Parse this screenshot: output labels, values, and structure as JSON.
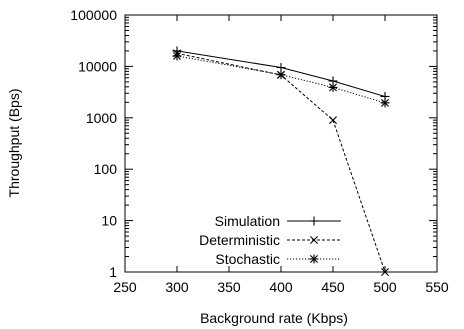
{
  "chart_data": {
    "type": "line",
    "title": "",
    "xlabel": "Background rate (Kbps)",
    "ylabel": "Throughput (Bps)",
    "xlim": [
      250,
      550
    ],
    "ylim": [
      1,
      100000
    ],
    "yscale": "log",
    "xticks": [
      "250",
      "300",
      "350",
      "400",
      "450",
      "500",
      "550"
    ],
    "yticks": [
      "1",
      "10",
      "100",
      "1000",
      "10000",
      "100000"
    ],
    "grid": false,
    "legend_position": "bottom-left",
    "series": [
      {
        "name": "Simulation",
        "x": [
          300,
          400,
          450,
          500
        ],
        "y": [
          20000,
          9500,
          5200,
          2600
        ],
        "marker": "plus",
        "dash": "solid"
      },
      {
        "name": "Deterministic",
        "x": [
          300,
          400,
          450,
          500
        ],
        "y": [
          18000,
          6800,
          900,
          1
        ],
        "marker": "x",
        "dash": "dashed"
      },
      {
        "name": "Stochastic",
        "x": [
          300,
          400,
          450,
          500
        ],
        "y": [
          16000,
          6900,
          3900,
          1950
        ],
        "marker": "star",
        "dash": "dotted"
      }
    ]
  }
}
